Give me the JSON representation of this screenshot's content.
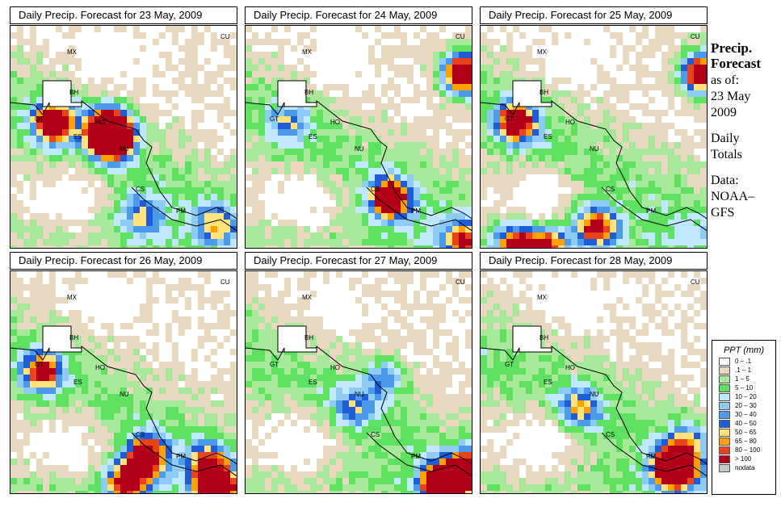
{
  "panels": [
    {
      "title": "Daily Precip. Forecast for  23 May, 2009",
      "day": 0
    },
    {
      "title": "Daily Precip. Forecast for  24 May, 2009",
      "day": 1
    },
    {
      "title": "Daily Precip. Forecast for  25 May, 2009",
      "day": 2
    },
    {
      "title": "Daily Precip. Forecast for  26 May, 2009",
      "day": 3
    },
    {
      "title": "Daily Precip. Forecast for  27 May, 2009",
      "day": 4
    },
    {
      "title": "Daily Precip. Forecast for  28 May, 2009",
      "day": 5
    }
  ],
  "country_labels": [
    "MX",
    "BH",
    "GT",
    "HO",
    "ES",
    "NU",
    "CS",
    "PM",
    "CU"
  ],
  "side": {
    "heading1": "Precip.",
    "heading2": "Forecast",
    "line1": "as of:",
    "line2": "23 May",
    "line3": "2009",
    "line4": "Daily",
    "line5": "Totals",
    "line6": "Data:",
    "line7": "NOAA–",
    "line8": "GFS"
  },
  "legend": {
    "title": "PPT (mm)",
    "items": [
      {
        "label": "0 – .1",
        "color": "#ffffff"
      },
      {
        "label": ".1 – 1",
        "color": "#e8d8bf"
      },
      {
        "label": "1 – 5",
        "color": "#a8e89a"
      },
      {
        "label": "5 – 10",
        "color": "#5ee060"
      },
      {
        "label": "10 – 20",
        "color": "#bfe8ff"
      },
      {
        "label": "20 – 30",
        "color": "#8ecbf3"
      },
      {
        "label": "30 – 40",
        "color": "#4b9bea"
      },
      {
        "label": "40 – 50",
        "color": "#1f5cd8"
      },
      {
        "label": "50 – 65",
        "color": "#ffe27a"
      },
      {
        "label": "65 – 80",
        "color": "#ffa000"
      },
      {
        "label": "80 – 100",
        "color": "#e8431a"
      },
      {
        "label": "> 100",
        "color": "#b3001a"
      },
      {
        "label": "nodata",
        "color": "#c8c8c8"
      }
    ]
  }
}
